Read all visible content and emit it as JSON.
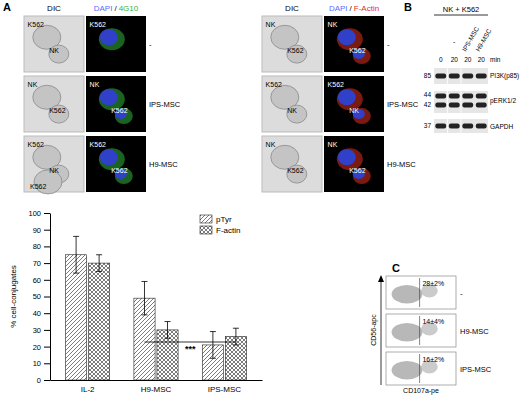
{
  "panel_labels": [
    "A",
    "B",
    "C"
  ],
  "microscopy": [
    {
      "dic_header": "DIC",
      "fluor_header": [
        "DAPI",
        "/",
        "4G10"
      ],
      "rows": [
        {
          "label": "-",
          "dic": [
            "K562",
            "NK"
          ],
          "fluor": [
            "K562"
          ]
        },
        {
          "label": "IPS-MSC",
          "dic": [
            "NK",
            "K562"
          ],
          "fluor": [
            "NK",
            "K562"
          ]
        },
        {
          "label": "H9-MSC",
          "dic": [
            "K562",
            "NK",
            "K562"
          ],
          "fluor": [
            "K562",
            "K562"
          ]
        }
      ]
    },
    {
      "dic_header": "DIC",
      "fluor_header": [
        "DAPI",
        "/",
        "F-Actin"
      ],
      "rows": [
        {
          "label": "-",
          "dic": [
            "NK",
            "K562"
          ],
          "fluor": [
            "NK",
            "K562"
          ]
        },
        {
          "label": "IPS-MSC",
          "dic": [
            "K562",
            "NK"
          ],
          "fluor": [
            "K562",
            "NK"
          ]
        },
        {
          "label": "H9-MSC",
          "dic": [
            "NK",
            "K562"
          ],
          "fluor": [
            "NK",
            "K562"
          ]
        }
      ]
    }
  ],
  "western_blot": {
    "title": "NK + K562",
    "treatments": [
      "-",
      "IPS-MSC",
      "H9-MSC"
    ],
    "times": [
      0,
      20,
      20,
      20
    ],
    "time_unit": "min",
    "bands": [
      "PI3K(p85)",
      "pERK1/2",
      "GAPDH"
    ],
    "mw": [
      85,
      44,
      42,
      37
    ]
  },
  "flow": {
    "y_label": "CD56-apc",
    "x_label": "CD107a-pe",
    "plots": [
      {
        "label": "-",
        "gate": "28±2%"
      },
      {
        "label": "H9-MSC",
        "gate": "14±4%"
      },
      {
        "label": "IPS-MSC",
        "gate": "16±2%"
      }
    ]
  },
  "chart_data": {
    "type": "bar",
    "categories": [
      "IL-2",
      "H9-MSC",
      "IPS-MSC"
    ],
    "series": [
      {
        "name": "pTyr",
        "color": "#444444",
        "values": [
          75,
          49,
          21
        ],
        "errors": [
          11,
          10,
          8
        ]
      },
      {
        "name": "F-actin",
        "color": "#444444",
        "values": [
          70,
          30,
          26
        ],
        "errors": [
          5,
          5,
          5
        ]
      }
    ],
    "y_label": "% cell-conjugates",
    "ylim": [
      0,
      100
    ],
    "yticks": [
      0,
      10,
      20,
      30,
      40,
      50,
      60,
      70,
      80,
      90,
      100
    ],
    "grid": false,
    "legend": "top-right",
    "annotations": [
      "***"
    ]
  }
}
